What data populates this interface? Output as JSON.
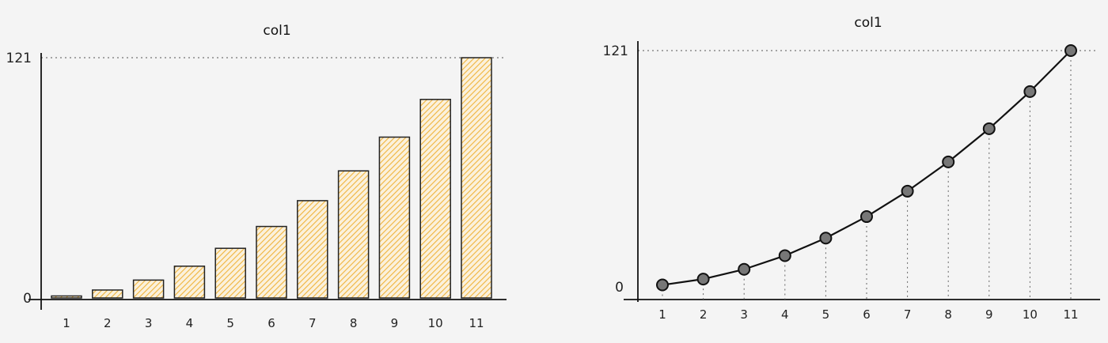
{
  "chart_data": [
    {
      "type": "bar",
      "title": "col1",
      "categories": [
        "1",
        "2",
        "3",
        "4",
        "5",
        "6",
        "7",
        "8",
        "9",
        "10",
        "11"
      ],
      "values": [
        1,
        4,
        9,
        16,
        25,
        36,
        49,
        64,
        81,
        100,
        121
      ],
      "ylim": [
        0,
        121
      ],
      "yticks": [
        "0",
        "121"
      ],
      "bar_color": "#f2b33d",
      "grid": false,
      "max_reference_line": true
    },
    {
      "type": "line",
      "title": "col1",
      "x": [
        "1",
        "2",
        "3",
        "4",
        "5",
        "6",
        "7",
        "8",
        "9",
        "10",
        "11"
      ],
      "values": [
        1,
        4,
        9,
        16,
        25,
        36,
        49,
        64,
        81,
        100,
        121
      ],
      "ylim": [
        0,
        121
      ],
      "yticks": [
        "0",
        "121"
      ],
      "line_color": "#111111",
      "marker_color": "#777777",
      "grid": false,
      "drop_lines": true,
      "max_reference_line": true
    }
  ]
}
